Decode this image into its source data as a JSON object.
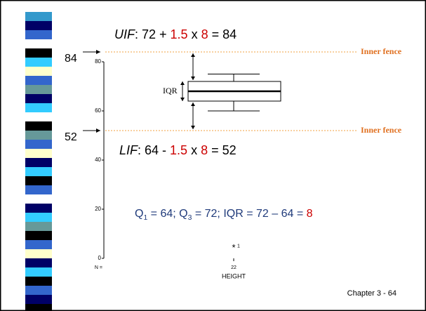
{
  "slide": {
    "footer": "Chapter 3 - 64"
  },
  "chart_data": {
    "type": "box",
    "ylim": [
      0,
      80
    ],
    "yticks": [
      0,
      20,
      40,
      60,
      80
    ],
    "x_label": "HEIGHT",
    "n_label": "N =",
    "categories": [
      "22"
    ],
    "box": {
      "whisker_low": 60,
      "q1": 64,
      "median": 68,
      "q3": 72,
      "whisker_high": 75
    },
    "outliers": [
      {
        "value": 5,
        "symbol": "*",
        "label": "1"
      }
    ],
    "fences": [
      {
        "value": 84,
        "label": "Inner fence",
        "color": "#f0a040"
      },
      {
        "value": 52,
        "label": "Inner fence",
        "color": "#f0a040"
      }
    ],
    "iqr_label": "IQR",
    "uif": [
      {
        "text": "UIF",
        "italic": true
      },
      {
        "text": ": 72 + "
      },
      {
        "text": "1.5",
        "color": "#cc0000"
      },
      {
        "text": " x "
      },
      {
        "text": "8",
        "color": "#cc0000"
      },
      {
        "text": " = 84"
      }
    ],
    "lif": [
      {
        "text": "LIF",
        "italic": true
      },
      {
        "text": ":  64 - "
      },
      {
        "text": "1.5",
        "color": "#cc0000"
      },
      {
        "text": " x "
      },
      {
        "text": "8",
        "color": "#cc0000"
      },
      {
        "text": " = 52"
      }
    ],
    "summary": [
      {
        "text": "Q"
      },
      {
        "text": "1",
        "sub": true
      },
      {
        "text": " = 64;   Q"
      },
      {
        "text": "3",
        "sub": true
      },
      {
        "text": " = 72;    IQR = 72 – 64 = "
      },
      {
        "text": "8",
        "color": "#cc0000"
      }
    ]
  }
}
